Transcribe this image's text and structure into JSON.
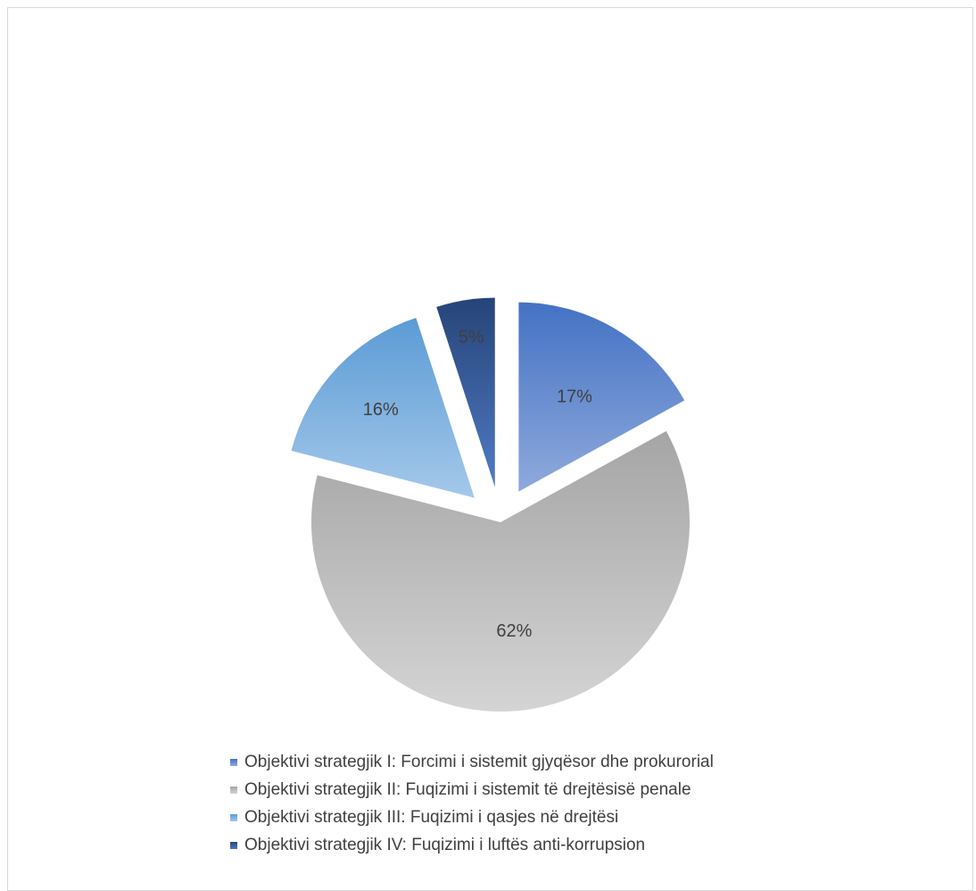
{
  "chart_data": {
    "type": "pie",
    "title": "",
    "exploded": true,
    "slices": [
      {
        "name": "Objektivi strategjik I: Forcimi i sistemit gjyqësor dhe prokurorial",
        "value": 17,
        "label": "17%",
        "color": "#4472c4",
        "gradient_to": "#8fa9dc"
      },
      {
        "name": "Objektivi strategjik II: Fuqizimi i sistemit të drejtësisë penale",
        "value": 62,
        "label": "62%",
        "color": "#a5a5a5",
        "gradient_to": "#d4d4d4"
      },
      {
        "name": "Objektivi strategjik III: Fuqizimi i qasjes në drejtësi",
        "value": 16,
        "label": "16%",
        "color": "#5b9bd5",
        "gradient_to": "#a4c8ea"
      },
      {
        "name": "Objektivi strategjik IV: Fuqizimi i luftës anti-korrupsion",
        "value": 5,
        "label": "5%",
        "color": "#264478",
        "gradient_to": "#4f7ac4"
      }
    ],
    "legend_position": "bottom"
  }
}
